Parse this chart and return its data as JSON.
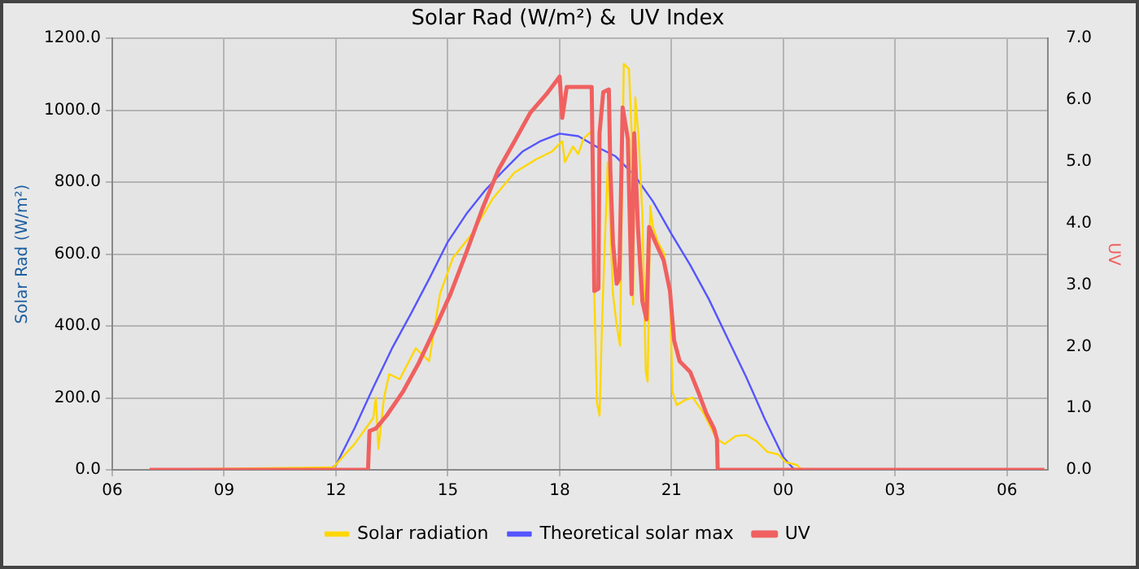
{
  "chart_data": {
    "type": "line",
    "title": "Solar Rad (W/m²) &  UV Index",
    "ylabel": "Solar Rad (W/m²)",
    "y2label": "UV",
    "xlim": [
      6,
      31.1
    ],
    "xticks": [
      {
        "value": 6,
        "label": "06"
      },
      {
        "value": 9,
        "label": "09"
      },
      {
        "value": 12,
        "label": "12"
      },
      {
        "value": 15,
        "label": "15"
      },
      {
        "value": 18,
        "label": "18"
      },
      {
        "value": 21,
        "label": "21"
      },
      {
        "value": 24,
        "label": "00"
      },
      {
        "value": 27,
        "label": "03"
      },
      {
        "value": 30,
        "label": "06"
      }
    ],
    "ylim": [
      0,
      1200
    ],
    "yticks": [
      {
        "value": 0,
        "label": "0.0"
      },
      {
        "value": 200,
        "label": "200.0"
      },
      {
        "value": 400,
        "label": "400.0"
      },
      {
        "value": 600,
        "label": "600.0"
      },
      {
        "value": 800,
        "label": "800.0"
      },
      {
        "value": 1000,
        "label": "1000.0"
      },
      {
        "value": 1200,
        "label": "1200.0"
      }
    ],
    "y2lim": [
      0,
      7
    ],
    "y2ticks": [
      {
        "value": 0,
        "label": "0.0"
      },
      {
        "value": 1,
        "label": "1.0"
      },
      {
        "value": 2,
        "label": "2.0"
      },
      {
        "value": 3,
        "label": "3.0"
      },
      {
        "value": 4,
        "label": "4.0"
      },
      {
        "value": 5,
        "label": "5.0"
      },
      {
        "value": 6,
        "label": "6.0"
      },
      {
        "value": 7,
        "label": "7.0"
      }
    ],
    "grid": true,
    "legend": "bottom",
    "marker": "none",
    "series": [
      {
        "name": "Solar radiation",
        "color": "#ffd700",
        "x": [
          7,
          11.93,
          12.5,
          13.0,
          13.07,
          13.14,
          13.29,
          13.43,
          13.71,
          14.14,
          14.5,
          14.79,
          15.14,
          15.64,
          16.21,
          16.79,
          17.36,
          17.79,
          18.07,
          18.14,
          18.36,
          18.5,
          18.64,
          18.86,
          18.93,
          19.0,
          19.07,
          19.14,
          19.29,
          19.43,
          19.53,
          19.62,
          19.72,
          19.86,
          19.93,
          19.97,
          20.03,
          20.12,
          20.22,
          20.31,
          20.36,
          20.43,
          20.5,
          20.64,
          20.79,
          20.96,
          21.03,
          21.14,
          21.36,
          21.57,
          21.86,
          22.21,
          22.43,
          22.72,
          23.0,
          23.29,
          23.57,
          23.86,
          24.07,
          24.36,
          24.5,
          31
        ],
        "values": [
          0,
          7,
          72,
          144,
          201,
          58,
          201,
          266,
          252,
          338,
          302,
          489,
          590,
          655,
          755,
          827,
          863,
          885,
          914,
          856,
          899,
          878,
          921,
          942,
          489,
          187,
          151,
          417,
          856,
          489,
          403,
          345,
          1129,
          1115,
          942,
          460,
          1036,
          921,
          705,
          273,
          245,
          734,
          676,
          633,
          604,
          489,
          216,
          180,
          194,
          201,
          158,
          86,
          72,
          94,
          97,
          79,
          50,
          43,
          21,
          14,
          0,
          0
        ]
      },
      {
        "name": "Theoretical solar max",
        "color": "#5555ff",
        "x": [
          7,
          11.8,
          12,
          12.5,
          13,
          13.5,
          14,
          14.5,
          15,
          15.5,
          16,
          16.5,
          17,
          17.5,
          18,
          18.5,
          19,
          19.5,
          20,
          20.5,
          21,
          21.5,
          22,
          22.5,
          23,
          23.5,
          24,
          24.3,
          31
        ],
        "values": [
          0,
          0,
          13,
          116,
          229,
          337,
          432,
          531,
          634,
          712,
          777,
          833,
          885,
          915,
          935,
          928,
          898,
          872,
          820,
          747,
          656,
          570,
          475,
          367,
          259,
          142,
          35,
          0,
          0
        ]
      },
      {
        "name": "UV",
        "color": "#f06060",
        "axis": "y2",
        "x": [
          7,
          12.86,
          12.9,
          13.07,
          13.36,
          13.79,
          14.21,
          14.64,
          15.07,
          15.5,
          15.93,
          16.36,
          16.79,
          17.21,
          17.64,
          18.0,
          18.07,
          18.19,
          18.5,
          18.86,
          18.9,
          18.93,
          19.04,
          19.07,
          19.17,
          19.32,
          19.36,
          19.43,
          19.53,
          19.6,
          19.69,
          19.83,
          19.93,
          20.0,
          20.1,
          20.22,
          20.33,
          20.4,
          20.57,
          20.79,
          20.96,
          21.07,
          21.22,
          21.5,
          21.72,
          21.93,
          22.14,
          22.22,
          22.24,
          31
        ],
        "values": [
          0,
          0,
          0.63,
          0.67,
          0.88,
          1.26,
          1.72,
          2.27,
          2.85,
          3.53,
          4.24,
          4.87,
          5.33,
          5.79,
          6.09,
          6.38,
          5.71,
          6.21,
          6.21,
          6.21,
          4.37,
          2.9,
          2.94,
          5.46,
          6.13,
          6.17,
          4.87,
          3.69,
          3.02,
          3.1,
          5.88,
          5.37,
          2.85,
          5.46,
          3.94,
          2.73,
          2.44,
          3.94,
          3.69,
          3.4,
          2.9,
          2.1,
          1.76,
          1.59,
          1.26,
          0.92,
          0.67,
          0.5,
          0,
          0
        ]
      }
    ]
  }
}
